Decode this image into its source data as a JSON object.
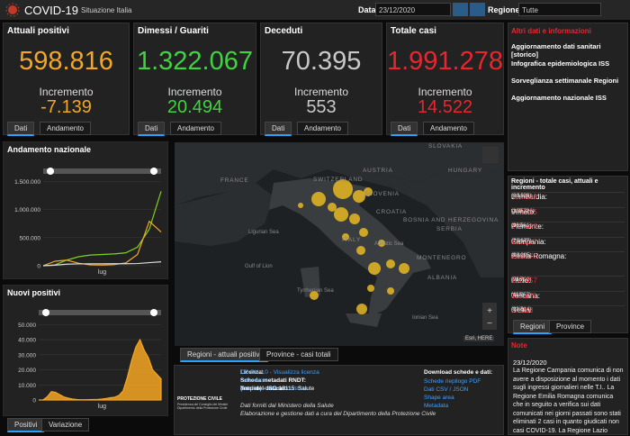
{
  "header": {
    "title": "COVID-19",
    "subtitle": "Situazione Italia",
    "date_label": "Data",
    "date_value": "23/12/2020",
    "region_label": "Regione",
    "region_value": "Tutte"
  },
  "cards": [
    {
      "title": "Attuali positivi",
      "value": "598.816",
      "increment_label": "Incremento",
      "increment": "-7.139",
      "color": "#f5a623",
      "tabs": [
        "Dati",
        "Andamento"
      ]
    },
    {
      "title": "Dimessi / Guariti",
      "value": "1.322.067",
      "increment_label": "Incremento",
      "increment": "20.494",
      "color": "#3fd43f",
      "tabs": [
        "Dati",
        "Andamento"
      ]
    },
    {
      "title": "Deceduti",
      "value": "70.395",
      "increment_label": "Incremento",
      "increment": "553",
      "color": "#c8c8c8",
      "tabs": [
        "Dati",
        "Andamento"
      ]
    },
    {
      "title": "Totale casi",
      "value": "1.991.278",
      "increment_label": "Incremento",
      "increment": "14.522",
      "color": "#e8262d",
      "tabs": [
        "Dati",
        "Andamento"
      ]
    }
  ],
  "info": {
    "title": "Altri dati e informazioni",
    "links": [
      "Aggiornamento dati sanitari [storico]",
      "Infografica epidemiologica ISS",
      "Sorveglianza settimanale Regioni",
      "Aggiornamento nazionale ISS"
    ]
  },
  "national_chart": {
    "type": "line",
    "title": "Andamento nazionale",
    "categories": [
      null,
      null,
      null,
      null,
      null,
      "lug",
      null,
      null,
      null,
      null,
      null
    ],
    "series": [
      {
        "color": "#7ed321",
        "values": [
          0,
          15000,
          100000,
          160000,
          190000,
          200000,
          210000,
          230000,
          330000,
          650000,
          1322067
        ]
      },
      {
        "color": "#f5a623",
        "values": [
          0,
          80000,
          100000,
          45000,
          15000,
          12000,
          20000,
          50000,
          200000,
          790000,
          598816
        ]
      },
      {
        "color": "#dddddd",
        "values": [
          0,
          10000,
          28000,
          33000,
          34000,
          35000,
          35500,
          36000,
          39000,
          55000,
          70395
        ]
      }
    ],
    "ylim": [
      0,
      1600000
    ],
    "yticks": [
      {
        "value": 0,
        "label": "0"
      },
      {
        "value": 500000,
        "label": "500.000"
      },
      {
        "value": 1000000,
        "label": "1.000.000"
      },
      {
        "value": 1500000,
        "label": "1.500.000"
      }
    ]
  },
  "new_cases_chart": {
    "type": "area",
    "title": "Nuovi positivi",
    "color": "#f5a623",
    "categories": [
      null,
      null,
      null,
      null,
      null,
      null,
      null,
      null,
      null,
      null,
      null,
      null,
      null,
      null,
      null,
      "lug",
      null,
      null,
      null,
      null,
      null,
      null,
      null,
      null,
      null,
      null,
      null,
      null,
      null,
      null
    ],
    "values": [
      0,
      0,
      2000,
      5500,
      5000,
      3500,
      2000,
      1200,
      600,
      300,
      200,
      200,
      250,
      300,
      400,
      600,
      1000,
      1500,
      1800,
      3000,
      6000,
      15000,
      26000,
      35000,
      40000,
      33000,
      28000,
      20000,
      17000,
      14000
    ],
    "ylim": [
      0,
      55000
    ],
    "yticks": [
      {
        "value": 0,
        "label": "0"
      },
      {
        "value": 10000,
        "label": "10.000"
      },
      {
        "value": 20000,
        "label": "20.000"
      },
      {
        "value": 30000,
        "label": "30.000"
      },
      {
        "value": 40000,
        "label": "40.000"
      },
      {
        "value": 50000,
        "label": "50.000"
      }
    ],
    "tabs": [
      "Positivi",
      "Variazione"
    ]
  },
  "map": {
    "labels": [
      "FRANCE",
      "SWITZERLAND",
      "AUSTRIA",
      "SLOVENIA",
      "CROATIA",
      "BOSNIA AND HERZEGOVINA",
      "SERBIA",
      "ITALY",
      "MONTENEGRO",
      "ALBANIA",
      "SLOVAKIA",
      "HUNGARY",
      "Ligurian Sea",
      "Adriatic Sea",
      "Tyrrhenian Sea",
      "Ionian Sea",
      "Gulf of Lion"
    ],
    "attribution": "Esri, HERE",
    "tabs": [
      "Regioni - attuali positivi",
      "Province - casi totali"
    ]
  },
  "regions": {
    "title": "Regioni - totale casi, attuali e incremento",
    "rows": [
      {
        "name": "Lombardia:",
        "total": "464.599",
        "active": "(60.239)",
        "increment": "(2.153)"
      },
      {
        "name": "Veneto:",
        "total": "225.945",
        "active": "(103.326)",
        "increment": "(3.357)"
      },
      {
        "name": "Piemonte:",
        "total": "191.443",
        "active": "(36.561)",
        "increment": "(933)"
      },
      {
        "name": "Campania:",
        "total": "183.117",
        "active": "(79.947)",
        "increment": "(1.067)"
      },
      {
        "name": "Emilia-Romagna:",
        "total": "159.472",
        "active": "(58.025)",
        "increment": "(1.129)"
      },
      {
        "name": "Lazio:",
        "total": "152.457",
        "active": "(75.702)",
        "increment": "(946)"
      },
      {
        "name": "Toscana:",
        "total": "116.979",
        "active": "(11.357)",
        "increment": "(435)"
      },
      {
        "name": "Sicilia:",
        "total": "87.028",
        "active": "(33.614)",
        "increment": "(932)"
      }
    ],
    "tabs": [
      "Regioni",
      "Province"
    ]
  },
  "note": {
    "title": "Note",
    "date": "23/12/2020",
    "text": "La Regione Campania comunica di non avere a disposizione al momento i dati sugli ingressi giornalieri nelle T.I.. La Regione Emilia Romagna comunica che in seguito a verifica sui dati comunicati nei giorni passati sono stati eliminati 2 casi in quanto giudicati non casi COVID-19. La Regione Lazio comunica"
  },
  "footer": {
    "logo_title": "PROTEZIONE CIVILE",
    "logo_sub": "Presidenza del Consiglio dei Ministri Dipartimento della Protezione Civile",
    "license_label": "Licenza:",
    "license_link": "CC-BY-4.0 - Visualizza licenza",
    "metadata_label": "Scheda metadati RNDT:",
    "metadata_link": "dati - aree",
    "themes_label": "Temi del dataset:",
    "themes_link": "Salute umana e sicurezza",
    "themes_rest": "(Inspire) - ISO 19115: Salute",
    "source": "Dati forniti dal Ministero della Salute",
    "management": "Elaborazione e gestione dati a cura del Dipartimento della Protezione Civile",
    "download_title": "Download schede e dati:",
    "downloads": [
      "Schede riepilogo PDF",
      "Dati CSV / JSON",
      "Shape area",
      "Metadata"
    ]
  }
}
